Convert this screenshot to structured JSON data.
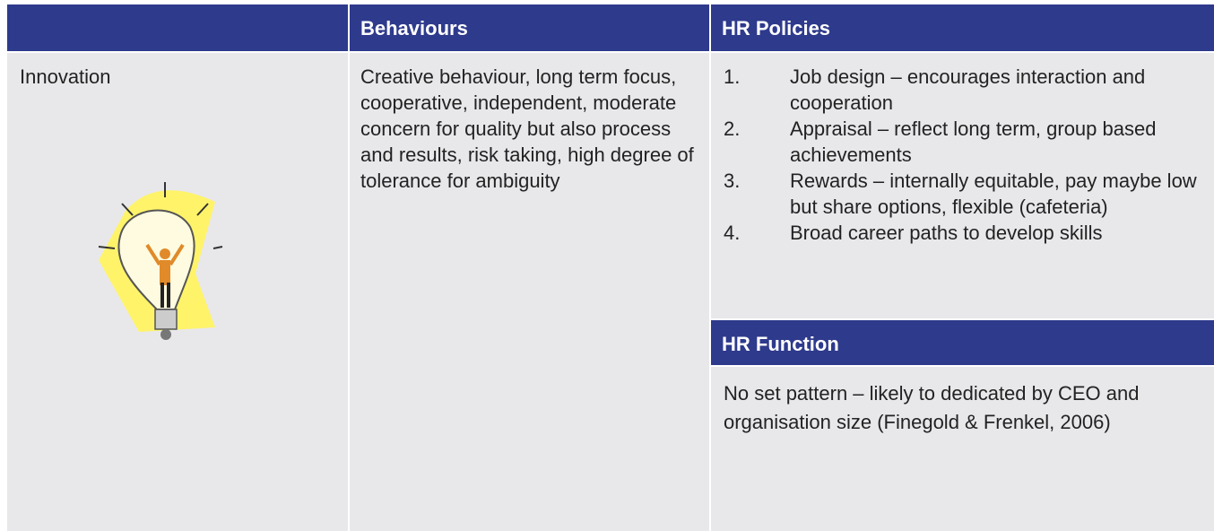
{
  "table": {
    "header": {
      "behaviours": "Behaviours",
      "hr_policies": "HR Policies"
    },
    "row": {
      "label": "Innovation",
      "behaviours": "Creative behaviour, long term focus, cooperative, independent, moderate concern for quality but also process and results, risk taking, high degree of tolerance for ambiguity",
      "hr_policies": [
        {
          "number": "1.",
          "text": "Job design – encourages interaction and cooperation"
        },
        {
          "number": "2.",
          "text": "Appraisal – reflect long term, group based achievements"
        },
        {
          "number": "3.",
          "text": "Rewards – internally equitable, pay maybe low but share options, flexible (cafeteria)"
        },
        {
          "number": "4.",
          "text": "Broad career paths to develop skills"
        }
      ],
      "hr_function_title": "HR Function",
      "hr_function": "No set pattern – likely to dedicated by CEO and organisation size (Finegold & Frenkel, 2006)"
    }
  }
}
